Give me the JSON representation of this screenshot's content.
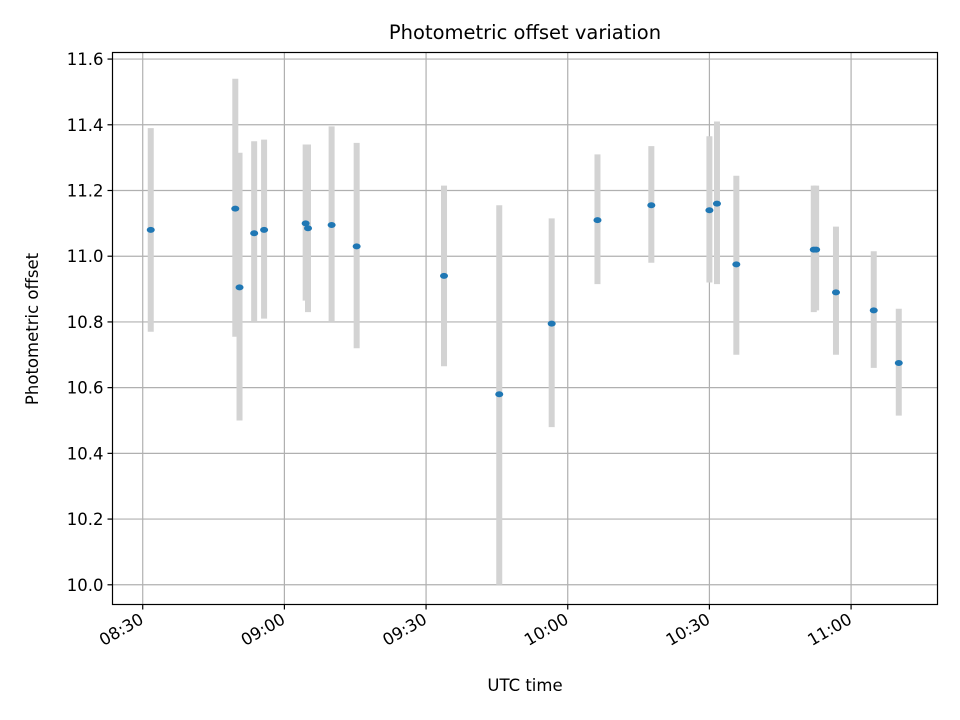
{
  "chart_data": {
    "type": "scatter",
    "title": "Photometric offset variation",
    "xlabel": "UTC time",
    "ylabel": "Photometric offset",
    "x_ticks": [
      "08:30",
      "09:00",
      "09:30",
      "10:00",
      "10:30",
      "11:00"
    ],
    "y_ticks": [
      "10.0",
      "10.2",
      "10.4",
      "10.6",
      "10.8",
      "11.0",
      "11.2",
      "11.4",
      "11.6"
    ],
    "xlim": [
      "08:23.6",
      "11:18.3"
    ],
    "ylim": [
      9.94,
      11.62
    ],
    "grid": true,
    "marker_color": "#1f77b4",
    "errorbar_color": "#d3d3d3",
    "points": [
      {
        "time": "08:31.7",
        "y": 11.08,
        "err_low": 10.77,
        "err_high": 11.39
      },
      {
        "time": "08:49.6",
        "y": 11.145,
        "err_low": 10.755,
        "err_high": 11.54
      },
      {
        "time": "08:50.5",
        "y": 10.905,
        "err_low": 10.5,
        "err_high": 11.315
      },
      {
        "time": "08:53.6",
        "y": 11.07,
        "err_low": 10.8,
        "err_high": 11.35
      },
      {
        "time": "08:55.7",
        "y": 11.08,
        "err_low": 10.81,
        "err_high": 11.355
      },
      {
        "time": "09:04.5",
        "y": 11.1,
        "err_low": 10.865,
        "err_high": 11.34
      },
      {
        "time": "09:05.0",
        "y": 11.085,
        "err_low": 10.83,
        "err_high": 11.34
      },
      {
        "time": "09:10.0",
        "y": 11.095,
        "err_low": 10.8,
        "err_high": 11.395
      },
      {
        "time": "09:15.3",
        "y": 11.03,
        "err_low": 10.72,
        "err_high": 11.345
      },
      {
        "time": "09:33.8",
        "y": 10.94,
        "err_low": 10.665,
        "err_high": 11.215
      },
      {
        "time": "09:45.5",
        "y": 10.58,
        "err_low": 10.0,
        "err_high": 11.155
      },
      {
        "time": "09:56.6",
        "y": 10.795,
        "err_low": 10.48,
        "err_high": 11.115
      },
      {
        "time": "10:06.3",
        "y": 11.11,
        "err_low": 10.915,
        "err_high": 11.31
      },
      {
        "time": "10:17.7",
        "y": 11.155,
        "err_low": 10.98,
        "err_high": 11.335
      },
      {
        "time": "10:30.0",
        "y": 11.14,
        "err_low": 10.92,
        "err_high": 11.365
      },
      {
        "time": "10:31.6",
        "y": 11.16,
        "err_low": 10.915,
        "err_high": 11.41
      },
      {
        "time": "10:35.7",
        "y": 10.975,
        "err_low": 10.7,
        "err_high": 11.245
      },
      {
        "time": "10:52.1",
        "y": 11.02,
        "err_low": 10.83,
        "err_high": 11.215
      },
      {
        "time": "10:52.6",
        "y": 11.02,
        "err_low": 10.835,
        "err_high": 11.215
      },
      {
        "time": "10:56.8",
        "y": 10.89,
        "err_low": 10.7,
        "err_high": 11.09
      },
      {
        "time": "11:04.8",
        "y": 10.835,
        "err_low": 10.66,
        "err_high": 11.015
      },
      {
        "time": "11:10.1",
        "y": 10.675,
        "err_low": 10.515,
        "err_high": 10.84
      }
    ]
  }
}
